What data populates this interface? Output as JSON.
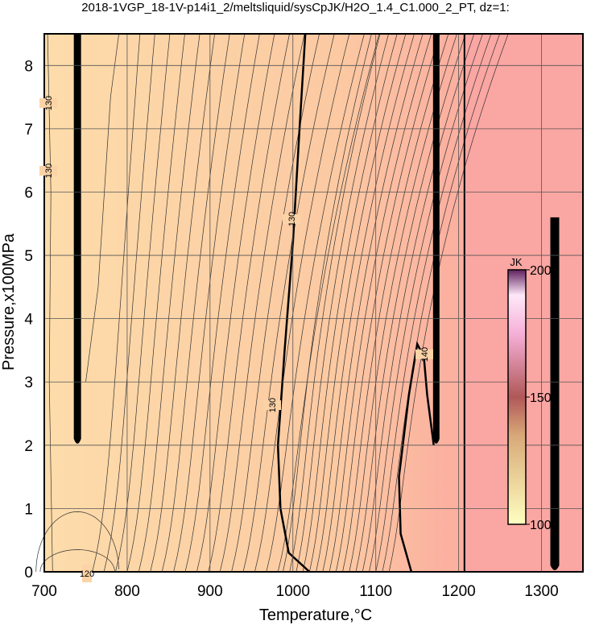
{
  "chart_data": {
    "type": "contour",
    "title": "2018-1VGP_18-1V-p14i1_2/meltsliquid/sysCpJK/H2O_1.4_C1.000_2_PT, dz=1:",
    "xlabel": "Temperature,°C",
    "ylabel": "Pressure,x100MPa",
    "xlim": [
      700,
      1350
    ],
    "ylim": [
      0,
      8.5
    ],
    "xticks": [
      700,
      800,
      900,
      1000,
      1100,
      1200,
      1300
    ],
    "yticks": [
      0,
      1,
      2,
      3,
      4,
      5,
      6,
      7,
      8
    ],
    "grid": true,
    "contour_labels": [
      130,
      130,
      130,
      130,
      140,
      120
    ],
    "colorbar": {
      "label": "JK",
      "lim": [
        100,
        200
      ],
      "ticks": [
        100,
        150,
        200
      ]
    }
  }
}
